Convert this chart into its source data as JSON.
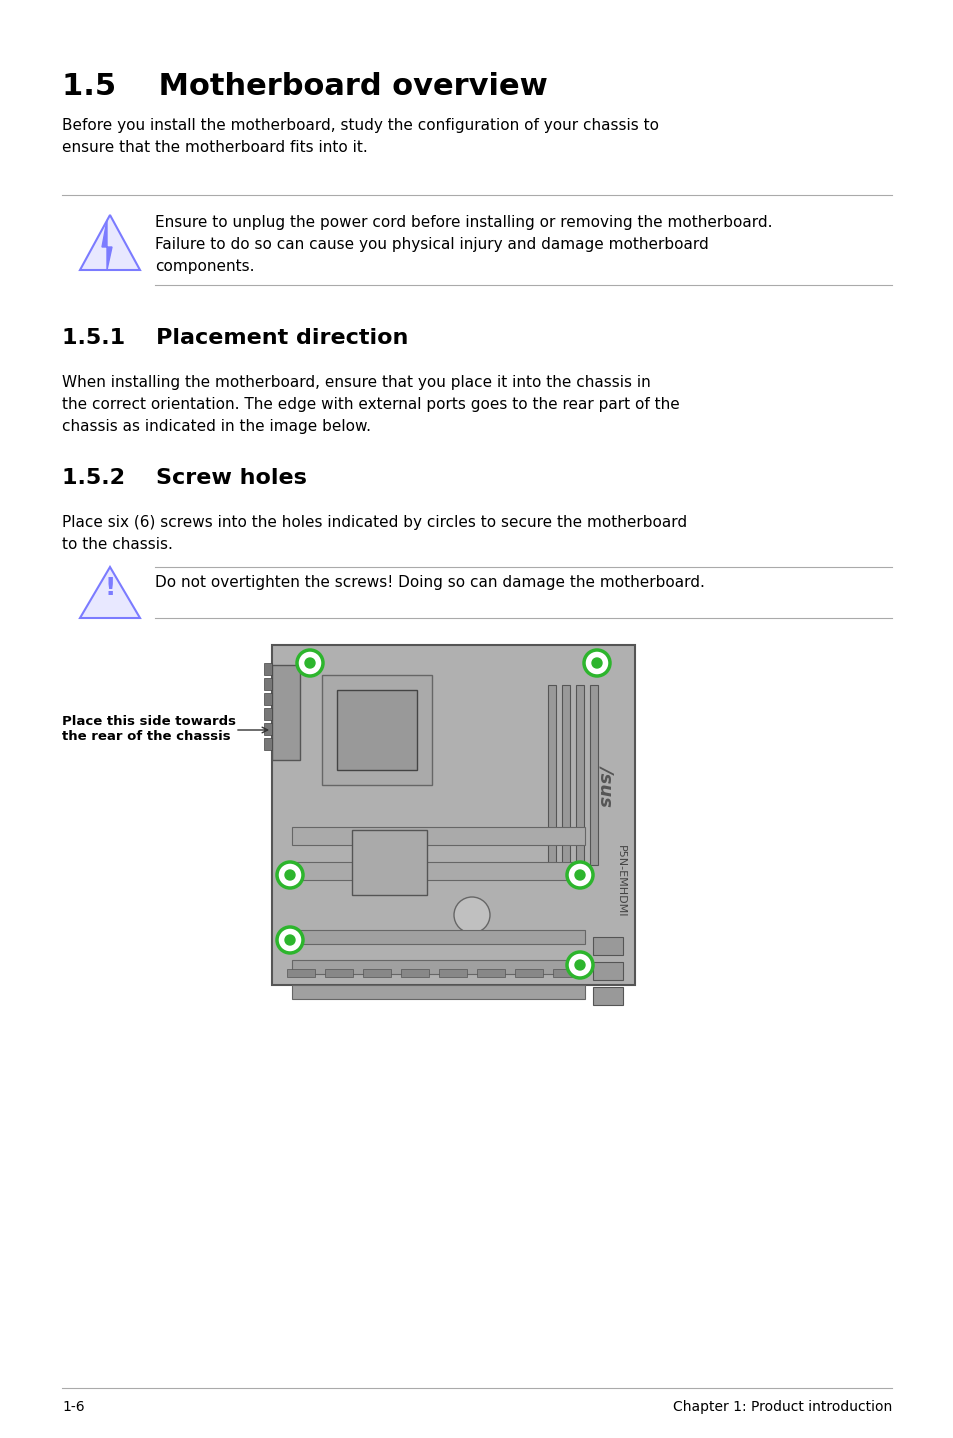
{
  "title": "1.5    Motherboard overview",
  "title_fontsize": 22,
  "body_fontsize": 11,
  "sub1_title": "1.5.1    Placement direction",
  "sub2_title": "1.5.2    Screw holes",
  "intro_text": "Before you install the motherboard, study the configuration of your chassis to\nensure that the motherboard fits into it.",
  "warning1_text": "Ensure to unplug the power cord before installing or removing the motherboard.\nFailure to do so can cause you physical injury and damage motherboard\ncomponents.",
  "sub1_text": "When installing the motherboard, ensure that you place it into the chassis in\nthe correct orientation. The edge with external ports goes to the rear part of the\nchassis as indicated in the image below.",
  "sub2_text": "Place six (6) screws into the holes indicated by circles to secure the motherboard\nto the chassis.",
  "warning2_text": "Do not overtighten the screws! Doing so can damage the motherboard.",
  "side_label": "Place this side towards\nthe rear of the chassis",
  "footer_left": "1-6",
  "footer_right": "Chapter 1: Product introduction",
  "bg_color": "#ffffff",
  "text_color": "#000000",
  "line_color": "#aaaaaa",
  "board_color": "#b0b0b0",
  "board_dark": "#888888",
  "screw_color": "#2db52d",
  "warn_icon1_color": "#7b7bff",
  "warn_icon2_color": "#7b7bff"
}
